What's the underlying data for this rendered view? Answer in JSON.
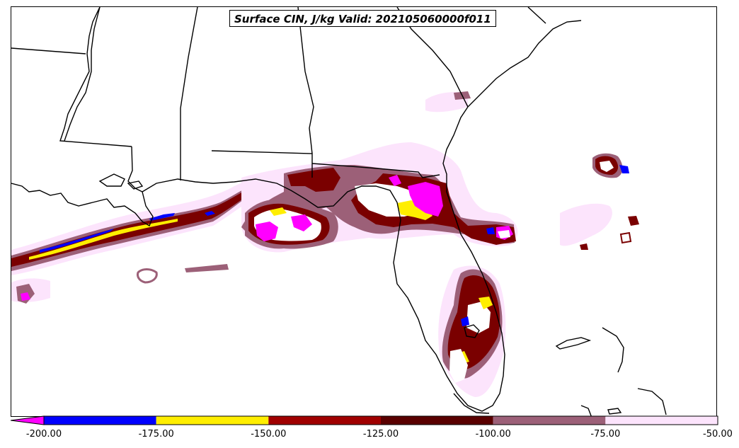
{
  "title": "Surface CIN, J/kg Valid: 202105060000f011",
  "colorbar": {
    "bins": [
      {
        "from": -200,
        "to": -175,
        "color": "#0000ff"
      },
      {
        "from": -175,
        "to": -150,
        "color": "#ffee00"
      },
      {
        "from": -150,
        "to": -125,
        "color": "#a00000"
      },
      {
        "from": -125,
        "to": -100,
        "color": "#5a0000"
      },
      {
        "from": -100,
        "to": -75,
        "color": "#9c6078"
      },
      {
        "from": -75,
        "to": -50,
        "color": "#fce4fc"
      }
    ],
    "under_color": "#ff00ff",
    "tick_labels": [
      "-200.00",
      "-175.00",
      "-150.00",
      "-125.00",
      "-100.00",
      "-75.00",
      "-50.00"
    ]
  },
  "legend_colors": {
    "magenta": "#ff00ff",
    "blue": "#0000ff",
    "yellow": "#ffee00",
    "red": "#a00000",
    "darkred": "#5a0000",
    "mauve": "#9c6078",
    "pink": "#fce4fc"
  }
}
